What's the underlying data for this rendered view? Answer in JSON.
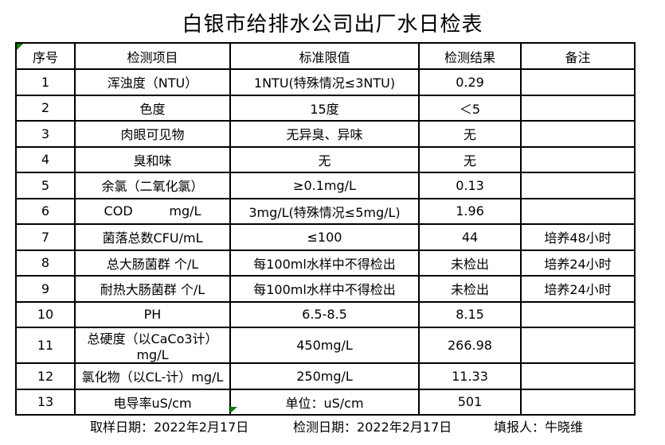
{
  "title": "白银市给排水公司出厂水日检表",
  "table": {
    "headers": [
      "序号",
      "检测项目",
      "标准限值",
      "检测结果",
      "备注"
    ],
    "rows": [
      {
        "no": "1",
        "item": "浑浊度（NTU）",
        "limit": "1NTU(特殊情况≤3NTU)",
        "result": "0.29",
        "remark": ""
      },
      {
        "no": "2",
        "item": "色度",
        "limit": "15度",
        "result": "＜5",
        "remark": ""
      },
      {
        "no": "3",
        "item": "肉眼可见物",
        "limit": "无异臭、异味",
        "result": "无",
        "remark": ""
      },
      {
        "no": "4",
        "item": "臭和味",
        "limit": "无",
        "result": "无",
        "remark": ""
      },
      {
        "no": "5",
        "item": "余氯（二氧化氯）",
        "limit": "≥0.1mg/L",
        "result": "0.13",
        "remark": ""
      },
      {
        "no": "6",
        "item": "COD         mg/L",
        "limit": "3mg/L(特殊情况≤5mg/L)",
        "result": "1.96",
        "remark": ""
      },
      {
        "no": "7",
        "item": "菌落总数CFU/mL",
        "limit": "≤100",
        "result": "44",
        "remark": "培养48小时"
      },
      {
        "no": "8",
        "item": "总大肠菌群 个/L",
        "limit": "每100ml水样中不得检出",
        "result": "未检出",
        "remark": "培养24小时"
      },
      {
        "no": "9",
        "item": "耐热大肠菌群 个/L",
        "limit": "每100ml水样中不得检出",
        "result": "未检出",
        "remark": "培养24小时"
      },
      {
        "no": "10",
        "item": "PH",
        "limit": "6.5-8.5",
        "result": "8.15",
        "remark": ""
      },
      {
        "no": "11",
        "item": "总硬度（以CaCo3计）mg/L",
        "limit": "450mg/L",
        "result": "266.98",
        "remark": ""
      },
      {
        "no": "12",
        "item": "氯化物（以CL-计）mg/L",
        "limit": "250mg/L",
        "result": "11.33",
        "remark": ""
      },
      {
        "no": "13",
        "item": "电导率uS/cm",
        "limit": "单位：uS/cm",
        "result": "501",
        "remark": ""
      }
    ]
  },
  "footer": {
    "sampling_date_label": "取样日期：",
    "sampling_date": "2022年2月17日",
    "test_date_label": "检测日期：",
    "test_date": "2022年2月17日",
    "reporter_label": "填报人：",
    "reporter": "牛晓维"
  },
  "colors": {
    "text": "#000000",
    "border": "#000000",
    "background": "#ffffff",
    "cell_marker_green": "#008000"
  }
}
